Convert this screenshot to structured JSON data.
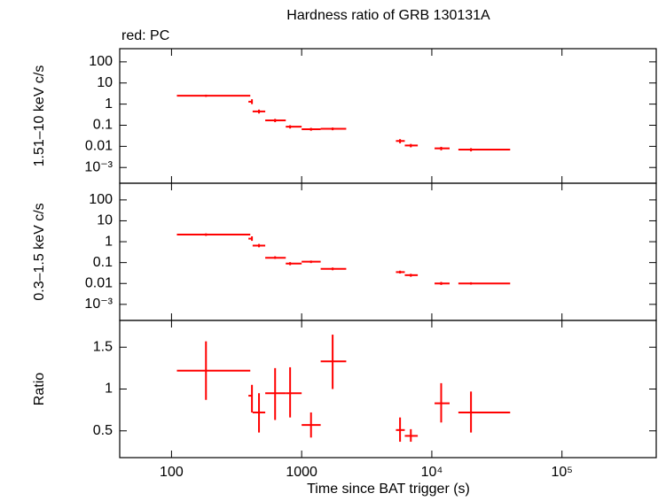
{
  "chart_data": [
    {
      "type": "errorbar",
      "title": "Hardness ratio of GRB 130131A",
      "subtitle": "red: PC",
      "ylabel": "1.51–10 keV c/s",
      "xscale": "log",
      "yscale": "log",
      "xlim": [
        40,
        530000
      ],
      "ylim": [
        0.00018,
        420
      ],
      "xticks": [
        100,
        1000,
        {
          "value": 10000,
          "label": "10⁴"
        },
        {
          "value": 100000,
          "label": "10⁵"
        }
      ],
      "yticks": [
        {
          "value": 0.001,
          "label": "10⁻³"
        },
        0.01,
        0.1,
        1,
        10,
        100
      ],
      "series": [
        {
          "color": "#ff0000",
          "x": [
            184,
            415,
            470,
            625,
            815,
            1180,
            1730,
            5700,
            6900,
            11800,
            20000
          ],
          "x_min": [
            110,
            390,
            420,
            525,
            755,
            1000,
            1400,
            5300,
            6200,
            10500,
            16000
          ],
          "x_max": [
            403,
            420,
            525,
            755,
            1000,
            1400,
            2200,
            6200,
            7800,
            13700,
            40000
          ],
          "values": [
            2.5,
            1.3,
            0.45,
            0.17,
            0.085,
            0.065,
            0.068,
            0.018,
            0.011,
            0.008,
            0.007
          ],
          "y_min": [
            2.2,
            1.0,
            0.36,
            0.14,
            0.07,
            0.055,
            0.058,
            0.014,
            0.009,
            0.0065,
            0.0058
          ],
          "y_max": [
            2.8,
            1.7,
            0.55,
            0.2,
            0.1,
            0.075,
            0.078,
            0.022,
            0.013,
            0.0095,
            0.0082
          ]
        }
      ]
    },
    {
      "type": "errorbar",
      "ylabel": "0.3–1.5 keV c/s",
      "xscale": "log",
      "yscale": "log",
      "xlim": [
        40,
        530000
      ],
      "ylim": [
        0.00017,
        630
      ],
      "xticks": [
        100,
        1000,
        {
          "value": 10000,
          "label": "10⁴"
        },
        {
          "value": 100000,
          "label": "10⁵"
        }
      ],
      "yticks": [
        {
          "value": 0.001,
          "label": "10⁻³"
        },
        0.01,
        0.1,
        1,
        10,
        100
      ],
      "series": [
        {
          "color": "#ff0000",
          "x": [
            184,
            415,
            470,
            625,
            815,
            1180,
            1730,
            5700,
            6900,
            11800,
            20000
          ],
          "x_min": [
            110,
            390,
            420,
            525,
            755,
            1000,
            1400,
            5300,
            6200,
            10500,
            16000
          ],
          "x_max": [
            403,
            420,
            525,
            755,
            1000,
            1400,
            2200,
            6200,
            7800,
            13700,
            40000
          ],
          "values": [
            2.2,
            1.4,
            0.65,
            0.17,
            0.09,
            0.11,
            0.05,
            0.035,
            0.025,
            0.01,
            0.01
          ],
          "y_min": [
            1.9,
            1.1,
            0.54,
            0.15,
            0.075,
            0.095,
            0.043,
            0.03,
            0.021,
            0.0085,
            0.0088
          ],
          "y_max": [
            2.5,
            1.8,
            0.78,
            0.2,
            0.105,
            0.125,
            0.058,
            0.041,
            0.029,
            0.0118,
            0.0114
          ]
        }
      ]
    },
    {
      "type": "errorbar",
      "ylabel": "Ratio",
      "xlabel": "Time since BAT trigger (s)",
      "xscale": "log",
      "yscale": "linear",
      "xlim": [
        40,
        530000
      ],
      "ylim": [
        0.18,
        1.82
      ],
      "xticks": [
        100,
        1000,
        {
          "value": 10000,
          "label": "10⁴"
        },
        {
          "value": 100000,
          "label": "10⁵"
        }
      ],
      "yticks": [
        0.5,
        1,
        1.5
      ],
      "series": [
        {
          "color": "#ff0000",
          "x": [
            184,
            415,
            470,
            625,
            815,
            1180,
            1730,
            5700,
            6900,
            11800,
            20000
          ],
          "x_min": [
            110,
            390,
            420,
            525,
            755,
            1000,
            1400,
            5300,
            6200,
            10500,
            16000
          ],
          "x_max": [
            403,
            420,
            525,
            755,
            1000,
            1400,
            2200,
            6200,
            7800,
            13700,
            40000
          ],
          "values": [
            1.22,
            0.92,
            0.72,
            0.95,
            0.95,
            0.57,
            1.33,
            0.51,
            0.44,
            0.83,
            0.72
          ],
          "y_min": [
            0.87,
            0.72,
            0.48,
            0.63,
            0.66,
            0.42,
            1.0,
            0.37,
            0.37,
            0.6,
            0.48
          ],
          "y_max": [
            1.57,
            1.05,
            0.95,
            1.25,
            1.26,
            0.72,
            1.65,
            0.66,
            0.52,
            1.07,
            0.97
          ]
        }
      ]
    }
  ]
}
